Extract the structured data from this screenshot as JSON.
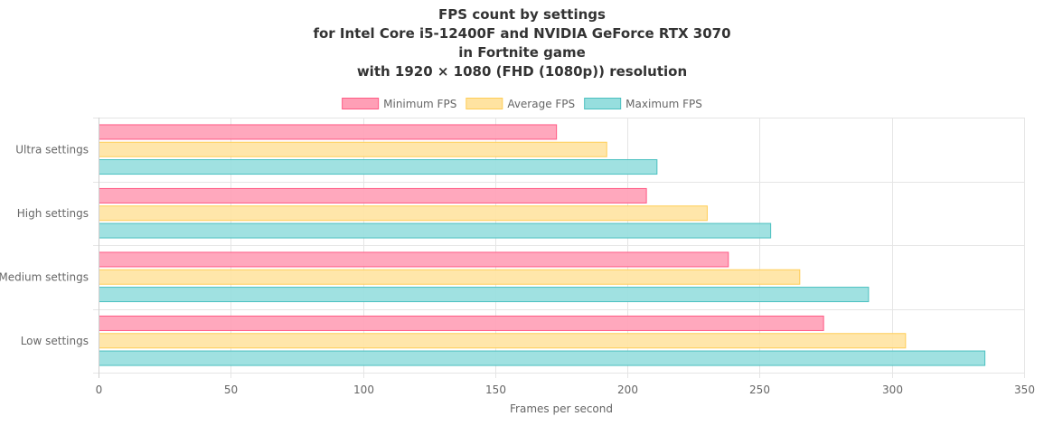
{
  "chart_data": {
    "type": "bar",
    "orientation": "horizontal",
    "title": [
      "FPS count by settings",
      "for Intel Core i5-12400F and NVIDIA GeForce RTX 3070",
      "in Fortnite game",
      "with 1920 × 1080 (FHD (1080p)) resolution"
    ],
    "categories": [
      "Ultra settings",
      "High settings",
      "Medium settings",
      "Low settings"
    ],
    "series": [
      {
        "name": "Minimum FPS",
        "values": [
          173,
          207,
          238,
          274
        ],
        "color": "#ff9fb6",
        "border": "#ff5a84"
      },
      {
        "name": "Average FPS",
        "values": [
          192,
          230,
          265,
          305
        ],
        "color": "#ffe3a1",
        "border": "#ffcd56"
      },
      {
        "name": "Maximum FPS",
        "values": [
          211,
          254,
          291,
          335
        ],
        "color": "#96dede",
        "border": "#4bc0c0"
      }
    ],
    "xlabel": "Frames per second",
    "ylabel": "",
    "xlim": [
      0,
      350
    ],
    "xticks": [
      "0",
      "50",
      "100",
      "150",
      "200",
      "250",
      "300",
      "350"
    ],
    "grid": true,
    "legend": "top"
  }
}
